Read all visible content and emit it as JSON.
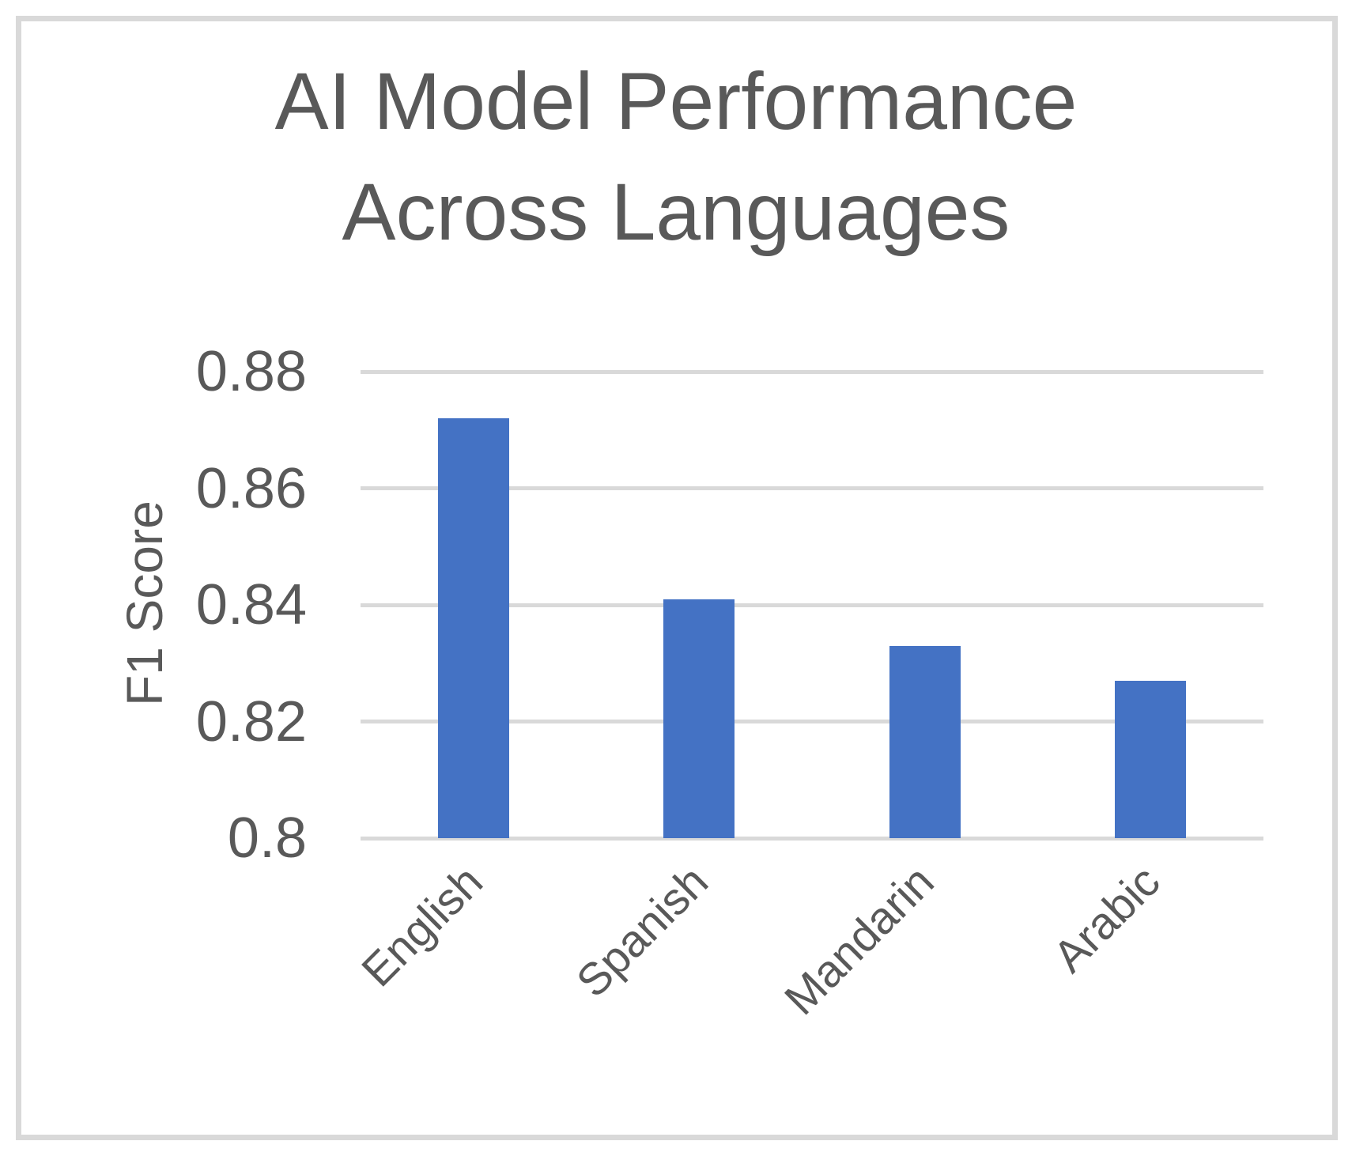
{
  "chart_data": {
    "type": "bar",
    "title": "AI Model Performance Across Languages",
    "title_lines": [
      "AI Model Performance",
      "Across Languages"
    ],
    "categories": [
      "English",
      "Spanish",
      "Mandarin",
      "Arabic"
    ],
    "values": [
      0.872,
      0.841,
      0.833,
      0.827
    ],
    "xlabel": "",
    "ylabel": "F1 Score",
    "ylim": [
      0.8,
      0.88
    ],
    "ytick_step": 0.02,
    "yticks": [
      "0.88",
      "0.86",
      "0.84",
      "0.82",
      "0.8"
    ],
    "grid": true,
    "legend": false,
    "x_label_rotation_deg": 45,
    "colors": {
      "bar": "#4472C4",
      "gridline": "#D9D9D9",
      "border": "#D9D9D9",
      "text": "#595959"
    }
  }
}
